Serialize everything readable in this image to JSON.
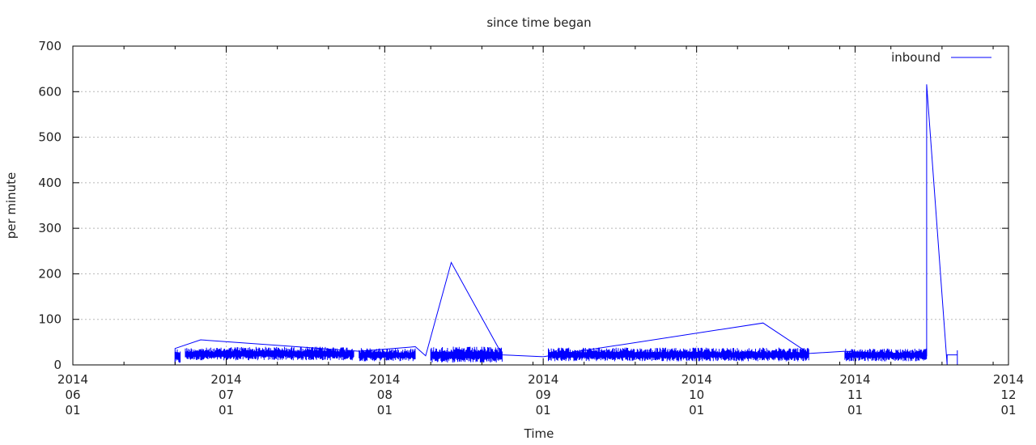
{
  "chart_data": {
    "type": "line",
    "title": "since time began",
    "xlabel": "Time",
    "ylabel": "per minute",
    "ylim": [
      0,
      700
    ],
    "xlim": [
      "2014-06-01",
      "2014-12-01"
    ],
    "y_ticks": [
      "0",
      "100",
      "200",
      "300",
      "400",
      "500",
      "600",
      "700"
    ],
    "x_ticks": [
      {
        "date": "2014-06-01",
        "lines": [
          "2014",
          "06",
          "01"
        ]
      },
      {
        "date": "2014-07-01",
        "lines": [
          "2014",
          "07",
          "01"
        ]
      },
      {
        "date": "2014-08-01",
        "lines": [
          "2014",
          "08",
          "01"
        ]
      },
      {
        "date": "2014-09-01",
        "lines": [
          "2014",
          "09",
          "01"
        ]
      },
      {
        "date": "2014-10-01",
        "lines": [
          "2014",
          "10",
          "01"
        ]
      },
      {
        "date": "2014-11-01",
        "lines": [
          "2014",
          "11",
          "01"
        ]
      },
      {
        "date": "2014-12-01",
        "lines": [
          "2014",
          "12",
          "01"
        ]
      }
    ],
    "grid": true,
    "legend": {
      "position": "top-right",
      "entries": [
        "inbound"
      ]
    },
    "series": [
      {
        "name": "inbound",
        "color": "#0000ff",
        "noise_bands": [
          {
            "start": "2014-06-21",
            "end": "2014-06-22",
            "low": 3,
            "high": 36
          },
          {
            "start": "2014-06-23",
            "end": "2014-07-01",
            "low": 10,
            "high": 38
          },
          {
            "start": "2014-07-01",
            "end": "2014-07-26",
            "low": 10,
            "high": 40
          },
          {
            "start": "2014-07-27",
            "end": "2014-08-07",
            "low": 8,
            "high": 37
          },
          {
            "start": "2014-08-10",
            "end": "2014-08-24",
            "low": 5,
            "high": 40
          },
          {
            "start": "2014-09-02",
            "end": "2014-09-28",
            "low": 8,
            "high": 38
          },
          {
            "start": "2014-09-28",
            "end": "2014-10-23",
            "low": 8,
            "high": 38
          },
          {
            "start": "2014-10-30",
            "end": "2014-11-15",
            "low": 8,
            "high": 36
          }
        ],
        "points": [
          [
            "2014-06-21",
            0
          ],
          [
            "2014-06-21",
            36
          ],
          [
            "2014-06-26",
            55
          ],
          [
            "2014-07-27",
            30
          ],
          [
            "2014-08-07",
            40
          ],
          [
            "2014-08-09",
            20
          ],
          [
            "2014-08-14",
            225
          ],
          [
            "2014-08-24",
            22
          ],
          [
            "2014-09-01",
            18
          ],
          [
            "2014-10-14",
            92
          ],
          [
            "2014-10-23",
            25
          ],
          [
            "2014-10-30",
            30
          ],
          [
            "2014-11-15",
            20
          ],
          [
            "2014-11-15",
            616
          ],
          [
            "2014-11-19",
            0
          ],
          [
            "2014-11-19",
            22
          ],
          [
            "2014-11-21",
            22
          ],
          [
            "2014-11-21",
            0
          ],
          [
            "2014-11-21",
            32
          ]
        ]
      }
    ]
  }
}
